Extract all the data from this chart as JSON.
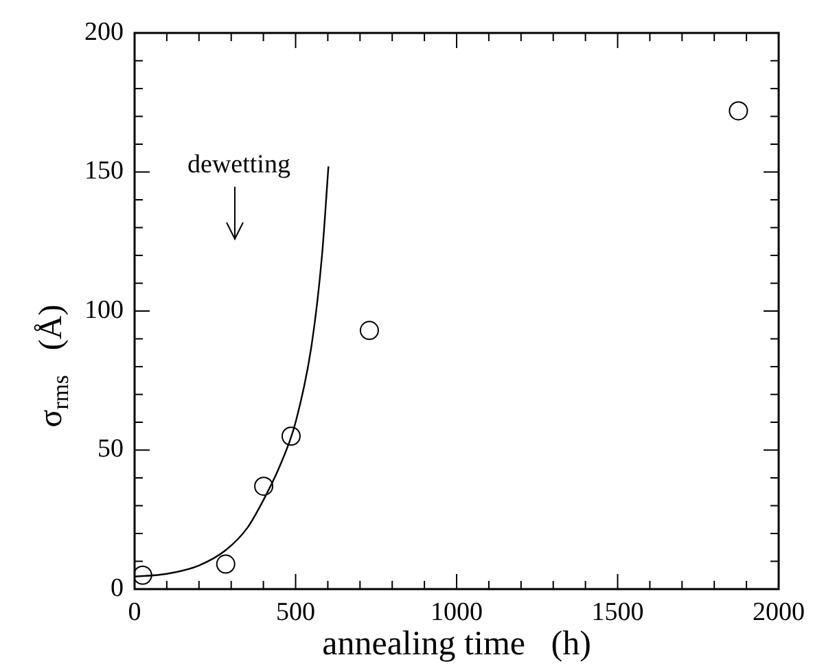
{
  "chart_data": {
    "type": "scatter",
    "xlabel": "annealing time   (h)",
    "ylabel": "σ$_{rms}$   (Å)",
    "xlim": [
      0,
      2000
    ],
    "ylim": [
      0,
      200
    ],
    "xticks": [
      0,
      {
        "value": 100,
        "label": null
      },
      {
        "value": 200,
        "label": null
      },
      {
        "value": 300,
        "label": null
      },
      {
        "value": 400,
        "label": null
      },
      500,
      {
        "value": 600,
        "label": null
      },
      {
        "value": 700,
        "label": null
      },
      {
        "value": 800,
        "label": null
      },
      {
        "value": 900,
        "label": null
      },
      1000,
      {
        "value": 1100,
        "label": null
      },
      {
        "value": 1200,
        "label": null
      },
      {
        "value": 1300,
        "label": null
      },
      {
        "value": 1400,
        "label": null
      },
      1500,
      {
        "value": 1600,
        "label": null
      },
      {
        "value": 1700,
        "label": null
      },
      {
        "value": 1800,
        "label": null
      },
      {
        "value": 1900,
        "label": null
      },
      2000
    ],
    "yticks": [
      0,
      {
        "value": 10,
        "label": null
      },
      {
        "value": 20,
        "label": null
      },
      {
        "value": 30,
        "label": null
      },
      {
        "value": 40,
        "label": null
      },
      50,
      {
        "value": 60,
        "label": null
      },
      {
        "value": 70,
        "label": null
      },
      {
        "value": 80,
        "label": null
      },
      {
        "value": 90,
        "label": null
      },
      100,
      {
        "value": 110,
        "label": null
      },
      {
        "value": 120,
        "label": null
      },
      {
        "value": 130,
        "label": null
      },
      {
        "value": 140,
        "label": null
      },
      150,
      {
        "value": 160,
        "label": null
      },
      {
        "value": 170,
        "label": null
      },
      {
        "value": 180,
        "label": null
      },
      {
        "value": 190,
        "label": null
      },
      200
    ],
    "grid": false,
    "legend": false,
    "annotations": [
      "dewetting"
    ],
    "series": [
      {
        "marker": "circle",
        "color": "#000000",
        "x": [
          25,
          283,
          401,
          486,
          729,
          1875
        ],
        "values": [
          5,
          9,
          37,
          55,
          93,
          172
        ]
      },
      {
        "type": "line",
        "marker": "none",
        "line_style": "solid",
        "color": "#000000",
        "x": [
          0,
          100,
          200,
          283,
          350,
          400,
          450,
          500,
          550,
          582,
          602
        ],
        "values": [
          4.5,
          5.5,
          8.5,
          14,
          22,
          32,
          44,
          60,
          88,
          120,
          152
        ]
      }
    ]
  }
}
